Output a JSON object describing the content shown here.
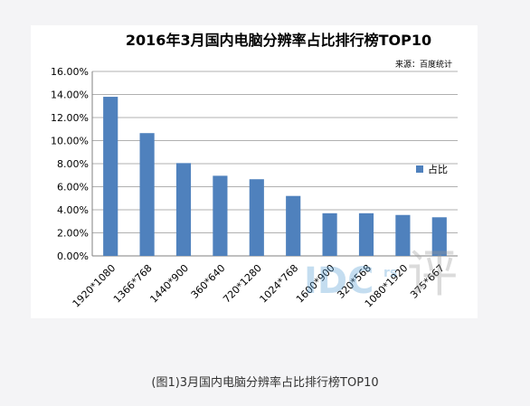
{
  "caption": "(图1)3月国内电脑分辨率占比排行榜TOP10",
  "watermark": {
    "text": "IDC",
    "suffix": "rs",
    "calligraphy": "评"
  },
  "colors": {
    "bar": "#4f81bd",
    "grid": "#b0b0b0",
    "axis": "#808080",
    "text": "#000000"
  },
  "chart_data": {
    "type": "bar",
    "title": "2016年3月国内电脑分辨率占比排行榜TOP10",
    "source": "来源：百度统计",
    "categories": [
      "1920*1080",
      "1366*768",
      "1440*900",
      "360*640",
      "720*1280",
      "1024*768",
      "1600*900",
      "320*568",
      "1080*1920",
      "375*667"
    ],
    "series": [
      {
        "name": "占比",
        "values": [
          13.8,
          10.65,
          8.05,
          6.95,
          6.65,
          5.2,
          3.7,
          3.7,
          3.55,
          3.35
        ]
      }
    ],
    "y_ticks": [
      "0.00%",
      "2.00%",
      "4.00%",
      "6.00%",
      "8.00%",
      "10.00%",
      "12.00%",
      "14.00%",
      "16.00%"
    ],
    "ylim": [
      0,
      16
    ],
    "grid": true,
    "legend_position": "right"
  }
}
